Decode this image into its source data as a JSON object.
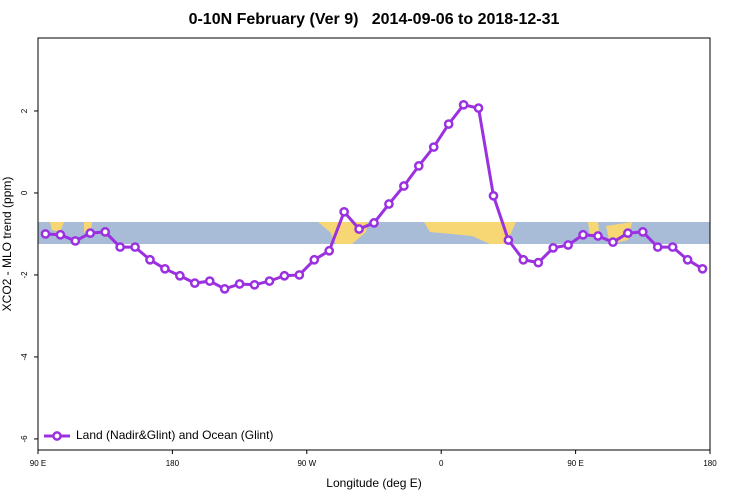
{
  "chart_data": {
    "type": "line",
    "title": "0-10N February (Ver 9)   2014-09-06 to 2018-12-31",
    "x_label": "Longitude (deg E)",
    "y_label": "XCO2 - MLO trend (ppm)",
    "xlim": [
      90,
      540
    ],
    "xticks": [
      {
        "value": 90,
        "label": "90 E"
      },
      180,
      {
        "value": 270,
        "label": "90 W"
      },
      {
        "value": 360,
        "label": "0"
      },
      {
        "value": 450,
        "label": "90 E"
      },
      {
        "value": 540,
        "label": "180"
      }
    ],
    "ylim": [
      -6.27,
      3.78
    ],
    "yticks": [
      -6,
      -4,
      -2,
      0,
      2
    ],
    "legend": "bottom-left",
    "series": [
      {
        "name": "Land (Nadir&Glint) and Ocean (Glint)",
        "color": "#9b30e0",
        "x": [
          95,
          105,
          115,
          125,
          135,
          145,
          155,
          165,
          175,
          185,
          195,
          205,
          215,
          225,
          235,
          245,
          255,
          265,
          275,
          285,
          295,
          305,
          315,
          325,
          335,
          345,
          355,
          365,
          375,
          385,
          395,
          405,
          415,
          425,
          435,
          445,
          455,
          465,
          475,
          485,
          495,
          505,
          515,
          525,
          535
        ],
        "values": [
          -1.0,
          -1.02,
          -1.17,
          -0.98,
          -0.95,
          -1.32,
          -1.32,
          -1.63,
          -1.85,
          -2.02,
          -2.2,
          -2.15,
          -2.34,
          -2.22,
          -2.24,
          -2.15,
          -2.02,
          -2.0,
          -1.63,
          -1.41,
          -0.46,
          -0.88,
          -0.73,
          -0.27,
          0.17,
          0.66,
          1.12,
          1.68,
          2.15,
          2.07,
          -0.07,
          -1.15,
          -1.63,
          -1.7,
          -1.34,
          -1.27,
          -1.02,
          -1.05,
          -1.2,
          -0.98,
          -0.95,
          -1.32,
          -1.32,
          -1.63,
          -1.85
        ]
      }
    ]
  }
}
